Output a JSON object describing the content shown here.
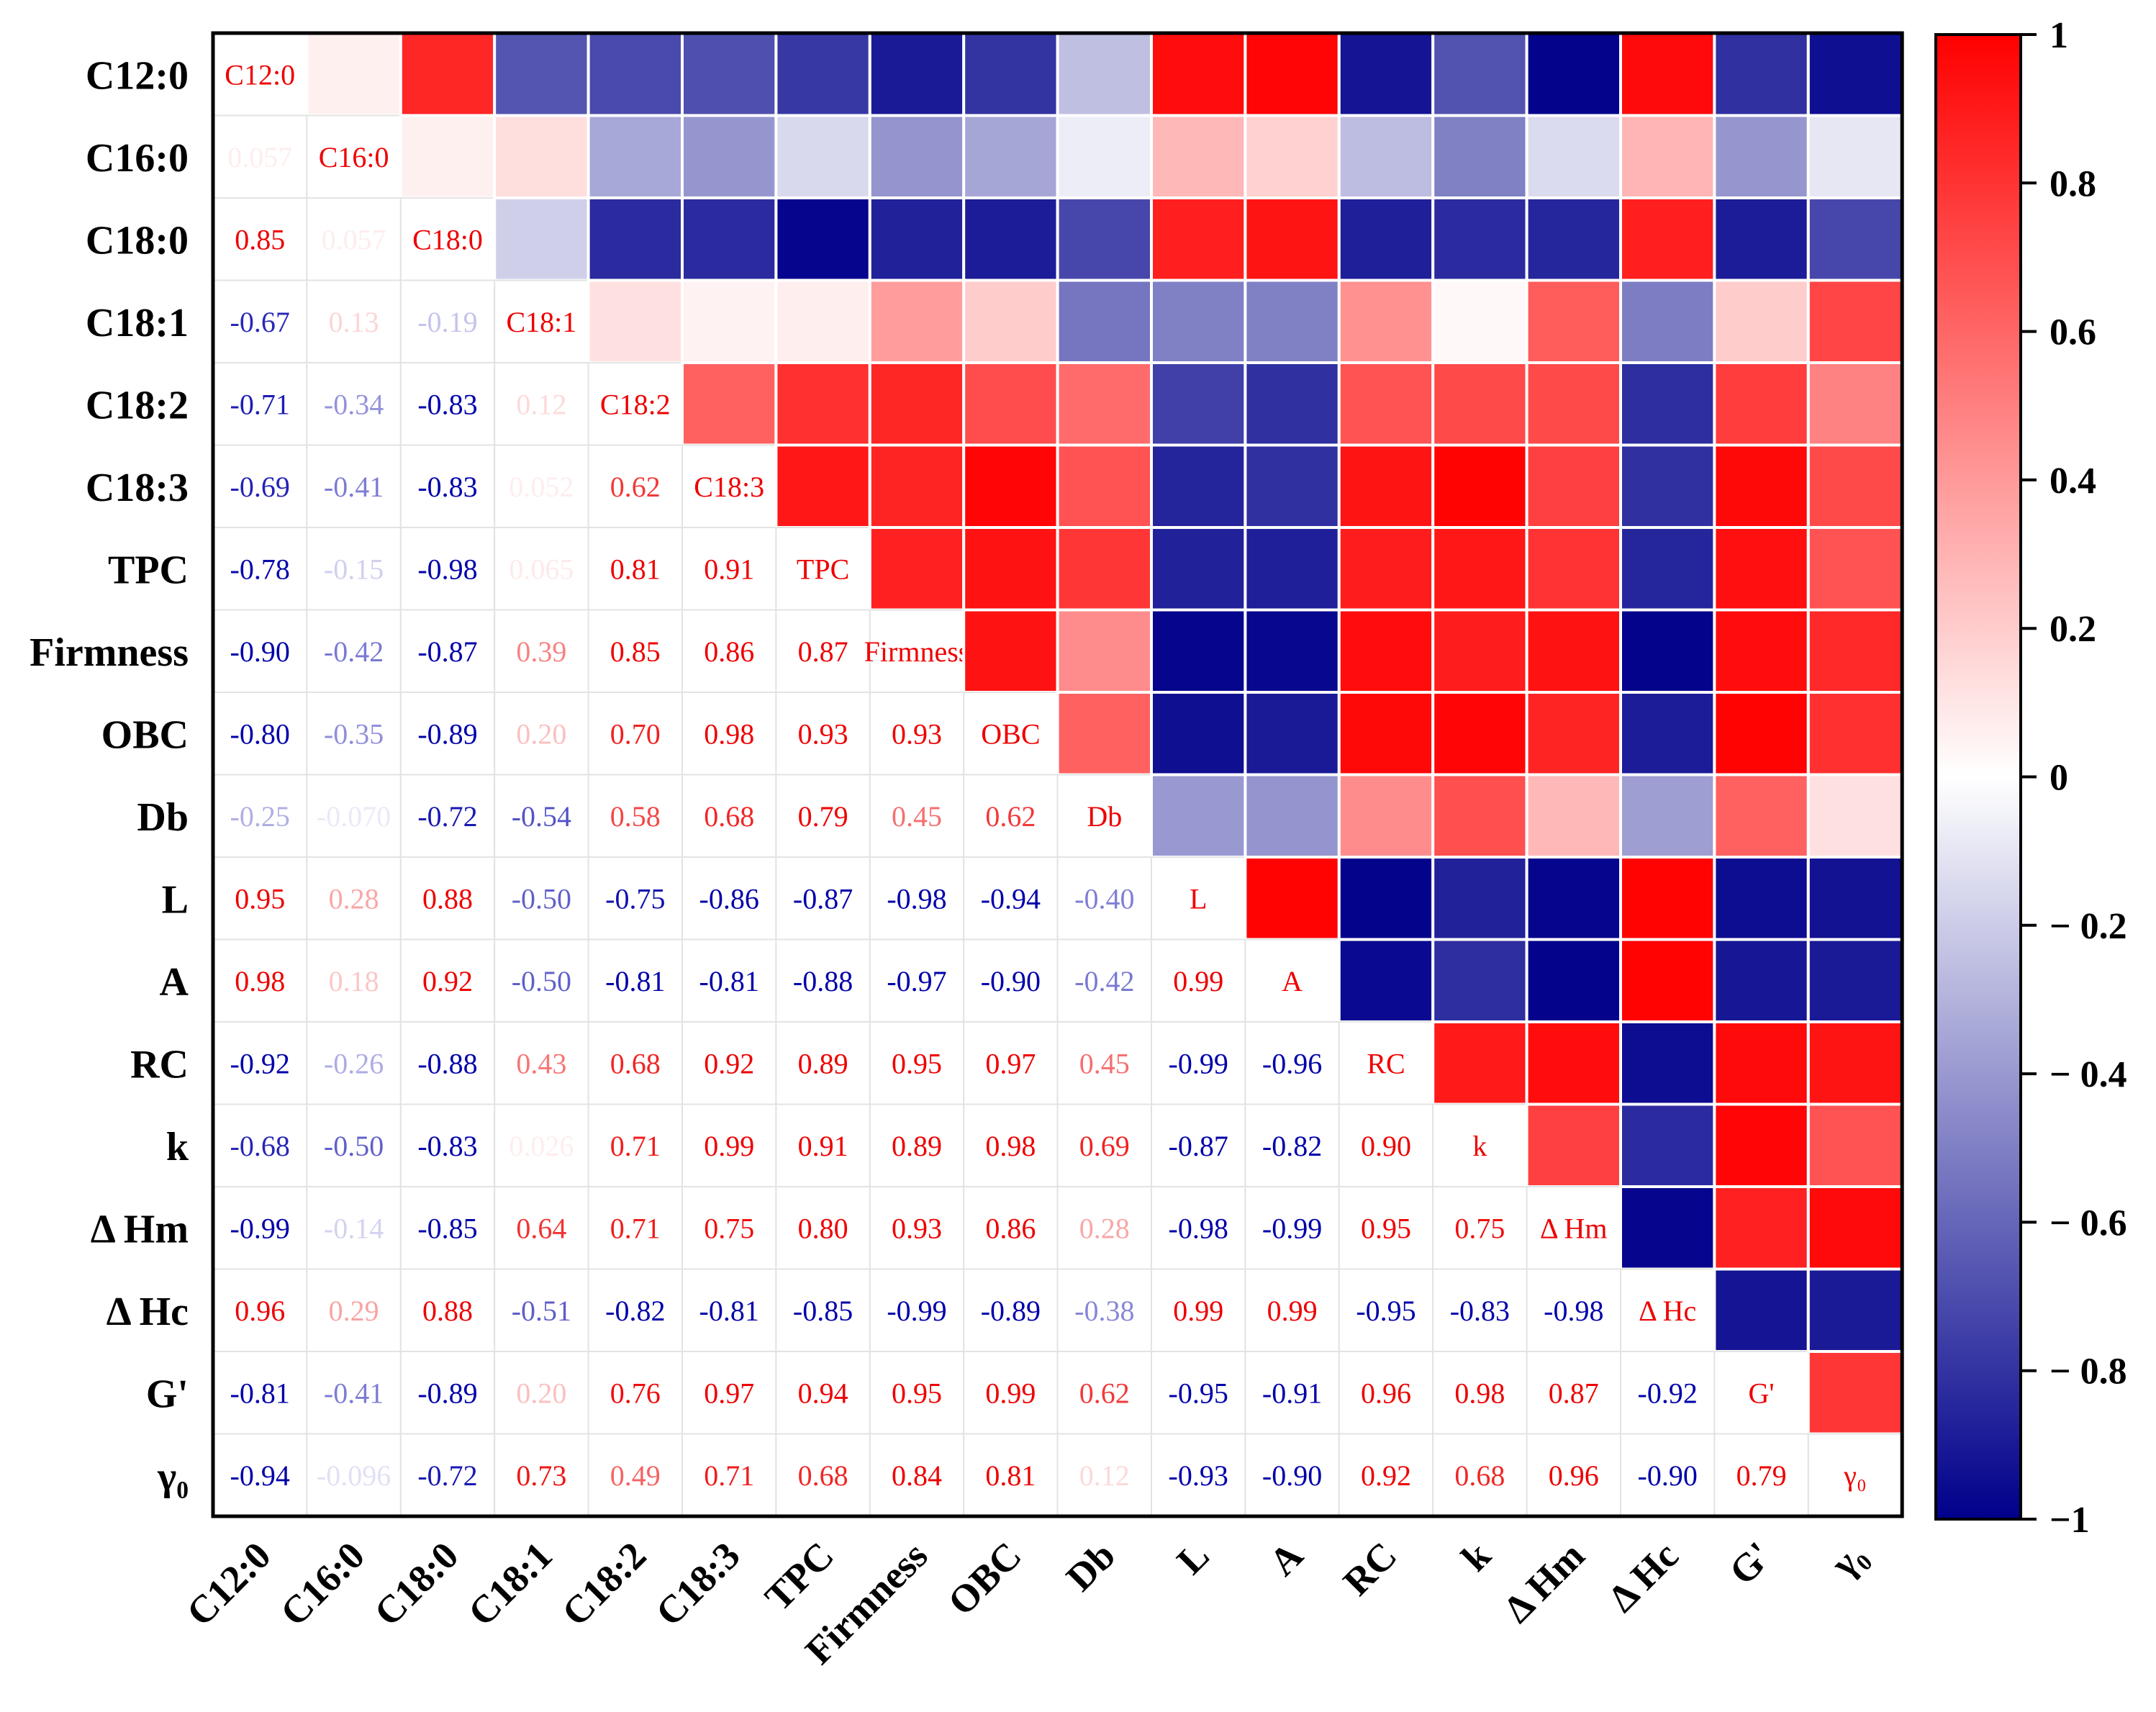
{
  "chart_data": {
    "type": "heatmap",
    "title": "",
    "variables": [
      "C12:0",
      "C16:0",
      "C18:0",
      "C18:1",
      "C18:2",
      "C18:3",
      "TPC",
      "Firmness",
      "OBC",
      "Db",
      "L",
      "A",
      "RC",
      "k",
      "Δ Hm",
      "Δ Hc",
      "G'",
      "γ₀"
    ],
    "lower_labels": [
      [],
      [
        "0.057"
      ],
      [
        "0.85",
        "0.057"
      ],
      [
        "-0.67",
        "0.13",
        "-0.19"
      ],
      [
        "-0.71",
        "-0.34",
        "-0.83",
        "0.12"
      ],
      [
        "-0.69",
        "-0.41",
        "-0.83",
        "0.052",
        "0.62"
      ],
      [
        "-0.78",
        "-0.15",
        "-0.98",
        "0.065",
        "0.81",
        "0.91"
      ],
      [
        "-0.90",
        "-0.42",
        "-0.87",
        "0.39",
        "0.85",
        "0.86",
        "0.87"
      ],
      [
        "-0.80",
        "-0.35",
        "-0.89",
        "0.20",
        "0.70",
        "0.98",
        "0.93",
        "0.93"
      ],
      [
        "-0.25",
        "-0.070",
        "-0.72",
        "-0.54",
        "0.58",
        "0.68",
        "0.79",
        "0.45",
        "0.62"
      ],
      [
        "0.95",
        "0.28",
        "0.88",
        "-0.50",
        "-0.75",
        "-0.86",
        "-0.87",
        "-0.98",
        "-0.94",
        "-0.40"
      ],
      [
        "0.98",
        "0.18",
        "0.92",
        "-0.50",
        "-0.81",
        "-0.81",
        "-0.88",
        "-0.97",
        "-0.90",
        "-0.42",
        "0.99"
      ],
      [
        "-0.92",
        "-0.26",
        "-0.88",
        "0.43",
        "0.68",
        "0.92",
        "0.89",
        "0.95",
        "0.97",
        "0.45",
        "-0.99",
        "-0.96"
      ],
      [
        "-0.68",
        "-0.50",
        "-0.83",
        "0.026",
        "0.71",
        "0.99",
        "0.91",
        "0.89",
        "0.98",
        "0.69",
        "-0.87",
        "-0.82",
        "0.90"
      ],
      [
        "-0.99",
        "-0.14",
        "-0.85",
        "0.64",
        "0.71",
        "0.75",
        "0.80",
        "0.93",
        "0.86",
        "0.28",
        "-0.98",
        "-0.99",
        "0.95",
        "0.75"
      ],
      [
        "0.96",
        "0.29",
        "0.88",
        "-0.51",
        "-0.82",
        "-0.81",
        "-0.85",
        "-0.99",
        "-0.89",
        "-0.38",
        "0.99",
        "0.99",
        "-0.95",
        "-0.83",
        "-0.98"
      ],
      [
        "-0.81",
        "-0.41",
        "-0.89",
        "0.20",
        "0.76",
        "0.97",
        "0.94",
        "0.95",
        "0.99",
        "0.62",
        "-0.95",
        "-0.91",
        "0.96",
        "0.98",
        "0.87",
        "-0.92"
      ],
      [
        "-0.94",
        "-0.096",
        "-0.72",
        "0.73",
        "0.49",
        "0.71",
        "0.68",
        "0.84",
        "0.81",
        "0.12",
        "-0.93",
        "-0.90",
        "0.92",
        "0.68",
        "0.96",
        "-0.90",
        "0.79"
      ]
    ],
    "colorbar": {
      "min": -1,
      "max": 1,
      "ticks": [
        "1",
        "0.8",
        "0.6",
        "0.4",
        "0.2",
        "0",
        "− 0.2",
        "− 0.4",
        "− 0.6",
        "− 0.8",
        "−1"
      ],
      "colors": {
        "negative": "#00008b",
        "zero": "#ffffff",
        "positive": "#ff0000"
      }
    }
  }
}
